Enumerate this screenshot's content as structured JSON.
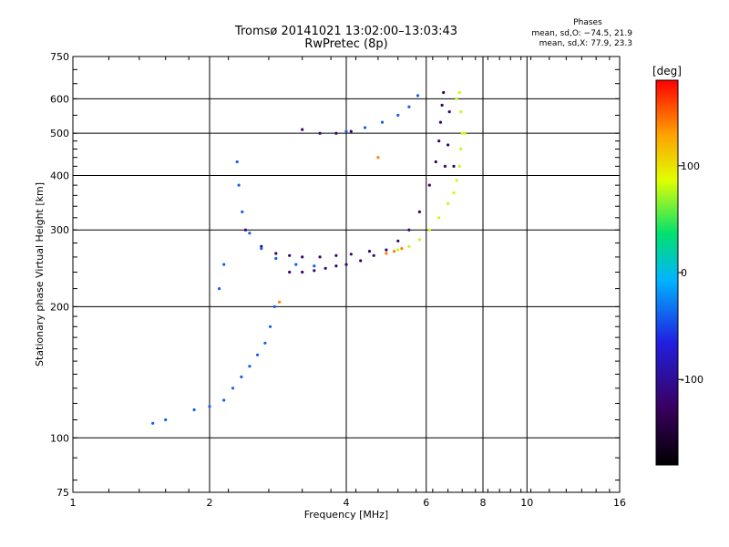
{
  "title_line1": "Tromsø 20141021 13:02:00–13:03:43",
  "title_line2": "RwPretec (8p)",
  "phases": {
    "title": "Phases",
    "line_o": "mean, sd,O: −74.5, 21.9",
    "line_x": "mean, sd,X:  77.9, 23.3"
  },
  "chart_data": {
    "type": "scatter",
    "title": "Tromsø 20141021 13:02:00–13:03:43",
    "subtitle": "RwPretec (8p)",
    "xlabel": "Frequency [MHz]",
    "ylabel": "Stationary phase Virtual Height [km]",
    "xscale": "log",
    "yscale": "log",
    "xlim": [
      1,
      16
    ],
    "ylim": [
      75,
      750
    ],
    "x_ticks": [
      1,
      2,
      4,
      6,
      8,
      10,
      16
    ],
    "y_ticks": [
      75,
      100,
      200,
      300,
      400,
      500,
      600,
      750
    ],
    "grid": true,
    "colorbar": {
      "label": "[deg]",
      "range": [
        -180,
        180
      ],
      "ticks": [
        100,
        0,
        -100
      ],
      "colormap": [
        "#000000",
        "#3a0060",
        "#2020e0",
        "#00b4ff",
        "#00e070",
        "#e0ff00",
        "#ffa000",
        "#ff0000"
      ]
    },
    "series": [
      {
        "mode": "O",
        "phase_deg": -120,
        "points": [
          [
            3.0,
            240
          ],
          [
            3.2,
            240
          ],
          [
            3.4,
            242
          ],
          [
            3.6,
            245
          ],
          [
            3.8,
            248
          ],
          [
            4.0,
            250
          ],
          [
            4.3,
            255
          ],
          [
            4.6,
            262
          ],
          [
            4.9,
            270
          ],
          [
            5.2,
            283
          ],
          [
            5.5,
            300
          ],
          [
            5.8,
            330
          ],
          [
            6.1,
            380
          ],
          [
            6.3,
            430
          ],
          [
            6.4,
            480
          ],
          [
            6.45,
            530
          ],
          [
            6.5,
            580
          ],
          [
            6.55,
            620
          ],
          [
            6.6,
            420
          ],
          [
            6.7,
            470
          ],
          [
            6.75,
            560
          ],
          [
            6.9,
            420
          ],
          [
            2.4,
            300
          ],
          [
            2.6,
            275
          ],
          [
            2.8,
            265
          ],
          [
            3.0,
            262
          ],
          [
            3.2,
            260
          ],
          [
            3.5,
            260
          ],
          [
            3.8,
            262
          ],
          [
            4.1,
            264
          ],
          [
            4.5,
            268
          ],
          [
            3.2,
            510
          ],
          [
            3.5,
            500
          ],
          [
            3.8,
            500
          ],
          [
            4.1,
            505
          ]
        ]
      },
      {
        "mode": "O",
        "phase_deg": -40,
        "points": [
          [
            1.5,
            108
          ],
          [
            1.6,
            110
          ],
          [
            1.85,
            116
          ],
          [
            2.0,
            118
          ],
          [
            2.15,
            122
          ],
          [
            2.25,
            130
          ],
          [
            2.35,
            138
          ],
          [
            2.45,
            146
          ],
          [
            2.55,
            155
          ],
          [
            2.65,
            165
          ],
          [
            2.72,
            180
          ],
          [
            2.78,
            200
          ],
          [
            2.3,
            430
          ],
          [
            2.32,
            380
          ],
          [
            2.36,
            330
          ],
          [
            2.45,
            295
          ],
          [
            2.6,
            272
          ],
          [
            2.8,
            258
          ],
          [
            3.1,
            250
          ],
          [
            3.4,
            248
          ],
          [
            2.1,
            220
          ],
          [
            2.15,
            250
          ],
          [
            4.0,
            505
          ],
          [
            4.4,
            515
          ],
          [
            4.8,
            530
          ],
          [
            5.2,
            550
          ],
          [
            5.5,
            575
          ],
          [
            5.75,
            610
          ]
        ]
      },
      {
        "mode": "X",
        "phase_deg": 80,
        "points": [
          [
            5.2,
            270
          ],
          [
            5.5,
            275
          ],
          [
            5.8,
            285
          ],
          [
            6.1,
            300
          ],
          [
            6.4,
            320
          ],
          [
            6.7,
            345
          ],
          [
            6.9,
            365
          ],
          [
            7.0,
            390
          ],
          [
            7.1,
            420
          ],
          [
            7.15,
            460
          ],
          [
            7.2,
            500
          ],
          [
            7.15,
            560
          ],
          [
            7.1,
            620
          ],
          [
            7.3,
            500
          ],
          [
            7.0,
            600
          ]
        ]
      },
      {
        "mode": "X",
        "phase_deg": 140,
        "points": [
          [
            4.9,
            265
          ],
          [
            5.1,
            268
          ],
          [
            5.3,
            272
          ],
          [
            4.7,
            440
          ],
          [
            2.85,
            205
          ]
        ]
      }
    ]
  }
}
